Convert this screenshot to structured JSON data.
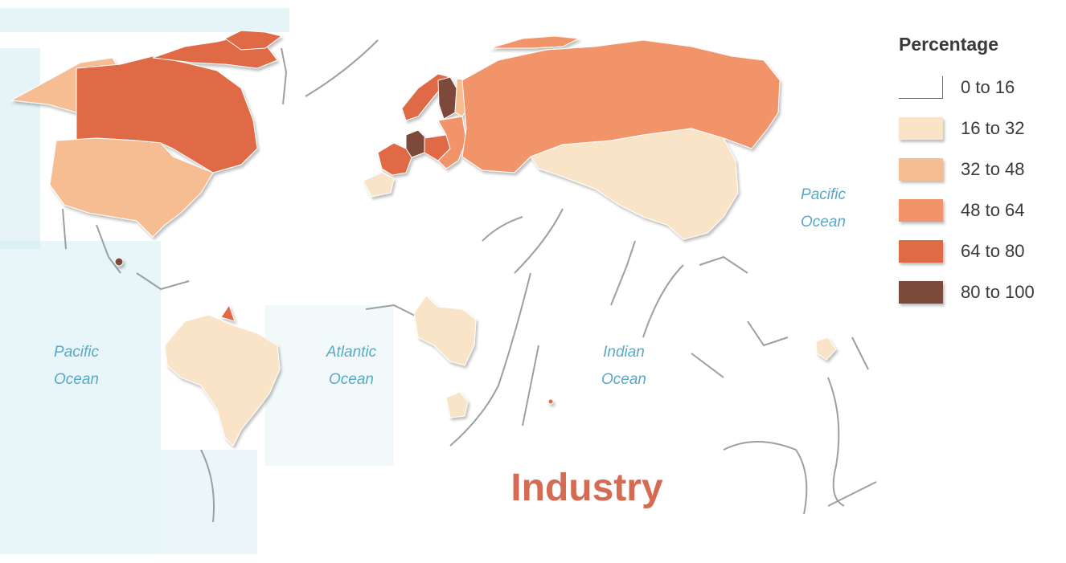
{
  "title": "Industry",
  "legend": {
    "title": "Percentage",
    "items": [
      {
        "label": "0 to 16",
        "color": "#ffffff"
      },
      {
        "label": "16 to 32",
        "color": "#fae4c8"
      },
      {
        "label": "32 to 48",
        "color": "#f6bd92"
      },
      {
        "label": "48 to 64",
        "color": "#f1946a"
      },
      {
        "label": "64 to 80",
        "color": "#df6b44"
      },
      {
        "label": "80 to 100",
        "color": "#7c4a3a"
      }
    ]
  },
  "oceans": [
    {
      "line1": "Pacific",
      "line2": "Ocean"
    },
    {
      "line1": "Pacific",
      "line2": "Ocean"
    },
    {
      "line1": "Atlantic",
      "line2": "Ocean"
    },
    {
      "line1": "Indian",
      "line2": "Ocean"
    }
  ],
  "regions": [
    {
      "name": "Canada",
      "class": "64 to 80"
    },
    {
      "name": "Greenland",
      "class": "64 to 80"
    },
    {
      "name": "Alaska",
      "class": "32 to 48"
    },
    {
      "name": "United States",
      "class": "32 to 48"
    },
    {
      "name": "Russia",
      "class": "48 to 64"
    },
    {
      "name": "China",
      "class": "16 to 32"
    },
    {
      "name": "Brazil",
      "class": "16 to 32"
    },
    {
      "name": "Central Africa",
      "class": "16 to 32"
    },
    {
      "name": "Southern Africa",
      "class": "16 to 32"
    },
    {
      "name": "Sweden",
      "class": "80 to 100"
    },
    {
      "name": "Germany",
      "class": "80 to 100"
    },
    {
      "name": "Norway",
      "class": "64 to 80"
    },
    {
      "name": "France",
      "class": "64 to 80"
    },
    {
      "name": "Iberia",
      "class": "16 to 32"
    },
    {
      "name": "Central America",
      "class": "80 to 100"
    },
    {
      "name": "Guiana",
      "class": "64 to 80"
    }
  ],
  "colors": {
    "ocean_texture": "#d6edf4",
    "coast_outline": "#9aa0a4",
    "title": "#d46b52",
    "ocean_label": "#5aa9c6"
  }
}
